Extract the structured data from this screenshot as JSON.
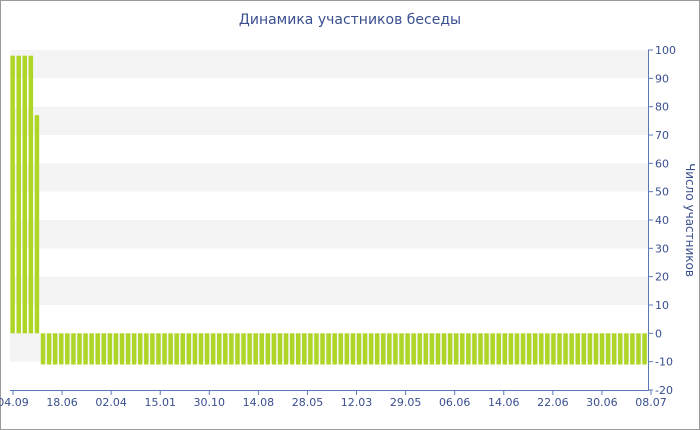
{
  "chart_data": {
    "type": "bar",
    "title": "Динамика участников беседы",
    "ylabel": "Число участников",
    "ylim": [
      -20,
      100
    ],
    "y_ticks": [
      -20,
      -10,
      0,
      10,
      20,
      30,
      40,
      50,
      60,
      70,
      80,
      90,
      100
    ],
    "x_tick_labels": [
      "04.09",
      "18.06",
      "02.04",
      "15.01",
      "30.10",
      "14.08",
      "28.05",
      "12.03",
      "29.05",
      "06.06",
      "14.06",
      "22.06",
      "30.06",
      "08.07"
    ],
    "grid": "horizontal bands",
    "bar_color": "#aed626",
    "series": [
      {
        "values": [
          98,
          98,
          98,
          98,
          77,
          -11,
          -11,
          -11,
          -11,
          -11,
          -11,
          -11,
          -11,
          -11,
          -11,
          -11,
          -11,
          -11,
          -11,
          -11,
          -11,
          -11,
          -11,
          -11,
          -11,
          -11,
          -11,
          -11,
          -11,
          -11,
          -11,
          -11,
          -11,
          -11,
          -11,
          -11,
          -11,
          -11,
          -11,
          -11,
          -11,
          -11,
          -11,
          -11,
          -11,
          -11,
          -11,
          -11,
          -11,
          -11,
          -11,
          -11,
          -11,
          -11,
          -11,
          -11,
          -11,
          -11,
          -11,
          -11,
          -11,
          -11,
          -11,
          -11,
          -11,
          -11,
          -11,
          -11,
          -11,
          -11,
          -11,
          -11,
          -11,
          -11,
          -11,
          -11,
          -11,
          -11,
          -11,
          -11,
          -11,
          -11,
          -11,
          -11,
          -11,
          -11,
          -11,
          -11,
          -11,
          -11,
          -11,
          -11,
          -11,
          -11,
          -11,
          -11,
          -11,
          -11,
          -11,
          -11,
          -11,
          -11,
          -11,
          -11,
          -11
        ]
      }
    ]
  }
}
